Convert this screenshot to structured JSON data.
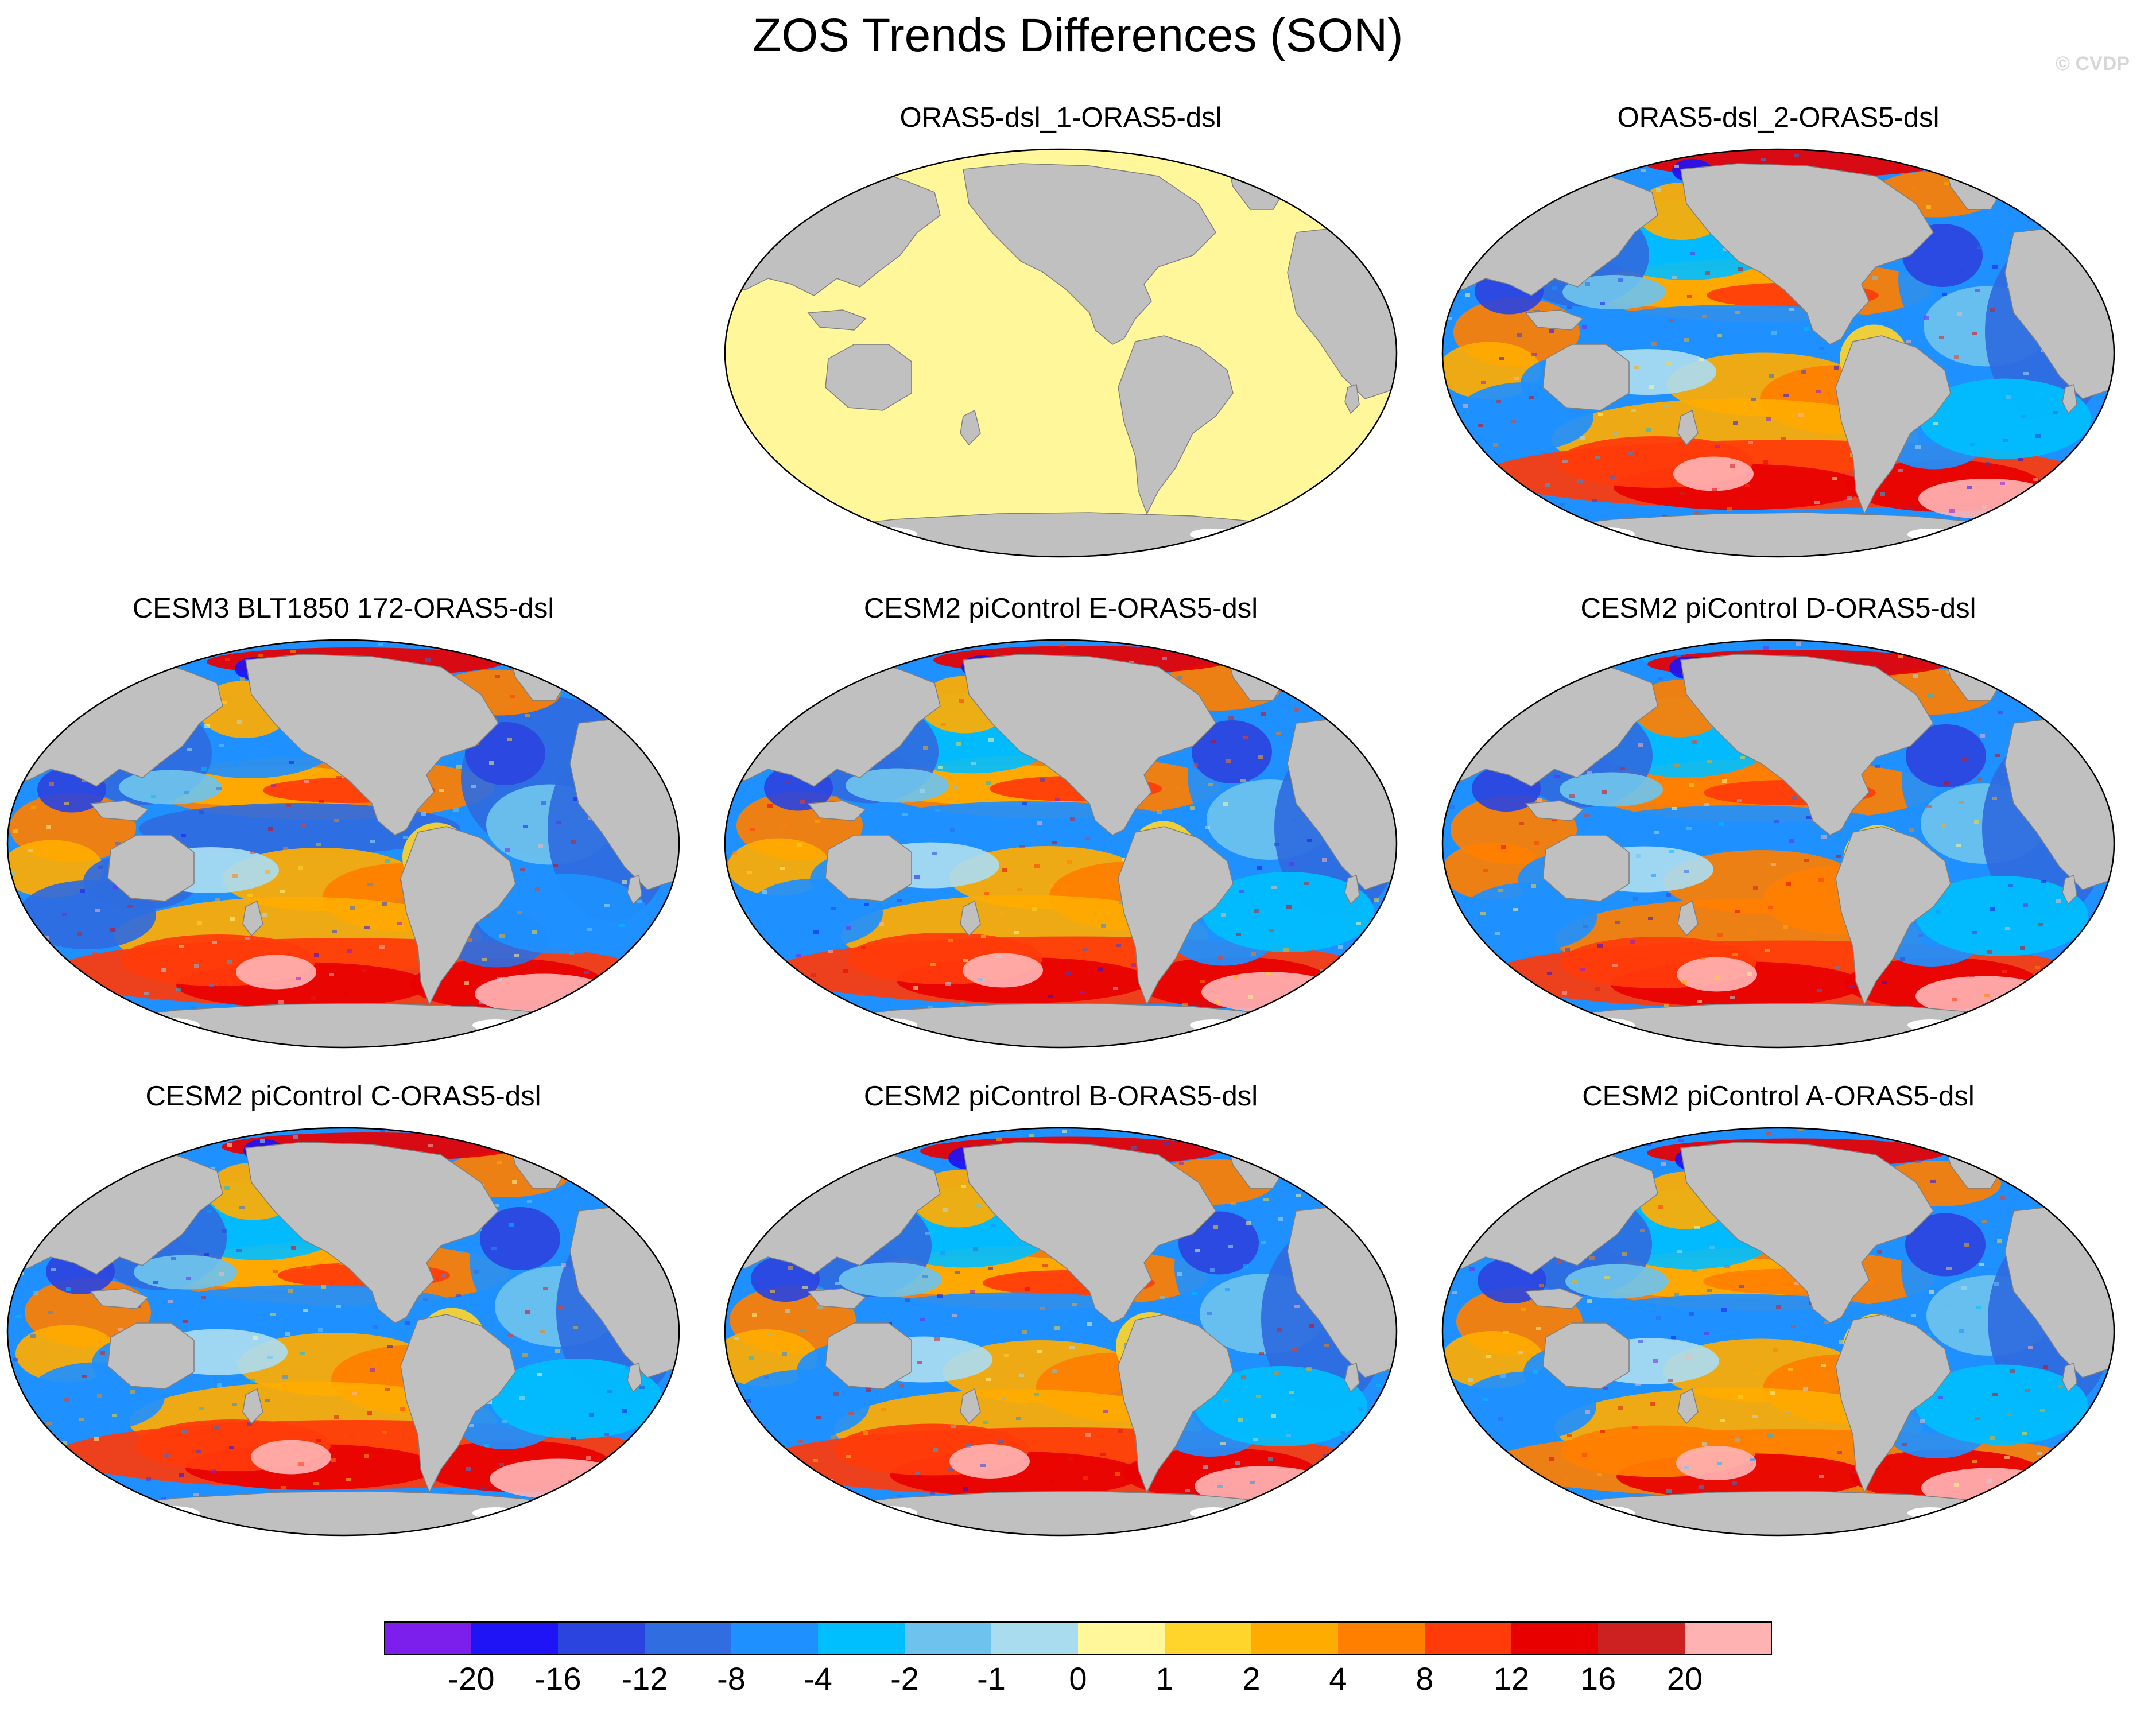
{
  "title": "ZOS Trends Differences (SON)",
  "credit": "© CVDP",
  "projection": "Robinson, Pacific-centered",
  "colors": {
    "land": "#c0c0c0",
    "ocean_zero": "#fff799",
    "coast": "#7f7f7f",
    "ice": "#ffffff"
  },
  "panels": [
    {
      "title": "ORAS5-dsl_1-ORAS5-dsl",
      "uniform": true,
      "variant": 0
    },
    {
      "title": "ORAS5-dsl_2-ORAS5-dsl",
      "uniform": false,
      "variant": 1
    },
    {
      "title": "CESM3 BLT1850 172-ORAS5-dsl",
      "uniform": false,
      "variant": 2
    },
    {
      "title": "CESM2 piControl E-ORAS5-dsl",
      "uniform": false,
      "variant": 3
    },
    {
      "title": "CESM2 piControl D-ORAS5-dsl",
      "uniform": false,
      "variant": 4
    },
    {
      "title": "CESM2 piControl C-ORAS5-dsl",
      "uniform": false,
      "variant": 5
    },
    {
      "title": "CESM2 piControl B-ORAS5-dsl",
      "uniform": false,
      "variant": 6
    },
    {
      "title": "CESM2 piControl A-ORAS5-dsl",
      "uniform": false,
      "variant": 7
    }
  ],
  "colorbar": {
    "labels": [
      "-20",
      "-16",
      "-12",
      "-8",
      "-4",
      "-2",
      "-1",
      "0",
      "1",
      "2",
      "4",
      "8",
      "12",
      "16",
      "20"
    ],
    "colors": [
      "#7d1fec",
      "#1e14f5",
      "#2b44e0",
      "#2f6de0",
      "#1e90ff",
      "#00bfff",
      "#6ec3ee",
      "#aadcf0",
      "#fff799",
      "#ffd52b",
      "#ffac00",
      "#ff7f00",
      "#ff3b0a",
      "#e80000",
      "#cd2020",
      "#ffb2b2"
    ]
  }
}
